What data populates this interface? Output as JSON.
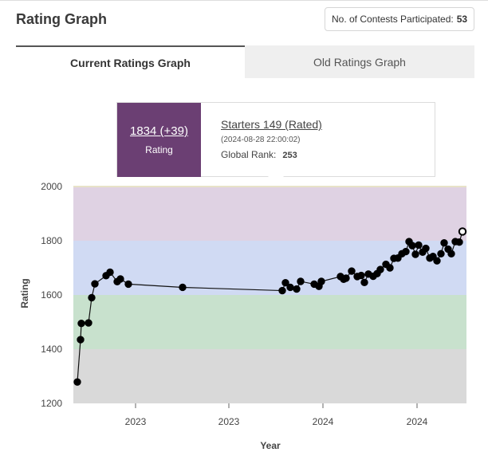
{
  "header": {
    "title": "Rating Graph",
    "contests_label": "No. of Contests Participated:",
    "contests_count": "53"
  },
  "tabs": [
    {
      "label": "Current Ratings Graph",
      "active": true
    },
    {
      "label": "Old Ratings Graph",
      "active": false
    }
  ],
  "tooltip": {
    "rating": "1834 (+39)",
    "rating_label": "Rating",
    "contest": "Starters 149 (Rated)",
    "datetime": "(2024-08-28 22:00:02)",
    "rank_label": "Global Rank:",
    "rank_value": "253",
    "accent_color": "#6b3f73"
  },
  "chart_data": {
    "type": "line",
    "xlabel": "Year",
    "ylabel": "Rating",
    "ylim": [
      1200,
      2000
    ],
    "yticks": [
      1200,
      1400,
      1600,
      1800,
      2000
    ],
    "xtick_labels": [
      "2023",
      "2023",
      "2024",
      "2024"
    ],
    "bands": [
      {
        "from": 1200,
        "to": 1400,
        "color": "#d9d9d9"
      },
      {
        "from": 1400,
        "to": 1600,
        "color": "#c8e1cd"
      },
      {
        "from": 1600,
        "to": 1800,
        "color": "#d0daf3"
      },
      {
        "from": 1800,
        "to": 2000,
        "color": "#dfd2e3"
      }
    ],
    "series": [
      {
        "values": [
          1279,
          1435,
          1495,
          1497,
          1590,
          1641,
          1671,
          1684,
          1649,
          1659,
          1640,
          1628,
          1616,
          1645,
          1628,
          1622,
          1650,
          1640,
          1632,
          1650,
          1668,
          1658,
          1662,
          1688,
          1668,
          1672,
          1646,
          1677,
          1669,
          1679,
          1694,
          1713,
          1700,
          1735,
          1736,
          1752,
          1760,
          1797,
          1782,
          1750,
          1784,
          1758,
          1772,
          1736,
          1742,
          1726,
          1752,
          1792,
          1769,
          1752,
          1797,
          1795,
          1834
        ]
      }
    ]
  }
}
